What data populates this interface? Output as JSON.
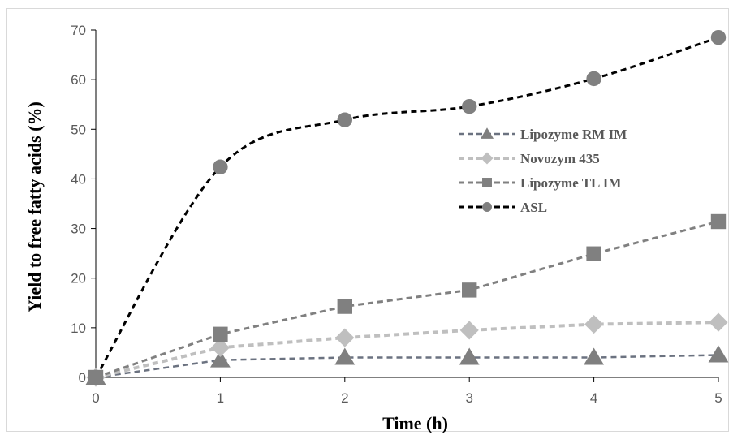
{
  "chart_data": {
    "type": "line",
    "xlabel": "Time (h)",
    "ylabel": "Yield to free fatty acids (%)",
    "xlim": [
      0,
      5
    ],
    "ylim": [
      0,
      70
    ],
    "x_ticks": [
      "0",
      "1",
      "2",
      "3",
      "4",
      "5"
    ],
    "y_ticks": [
      "0",
      "10",
      "20",
      "30",
      "40",
      "50",
      "60",
      "70"
    ],
    "grid": false,
    "legend_position": "right",
    "x": [
      0,
      1,
      2,
      3,
      4,
      5
    ],
    "series": [
      {
        "name": "Lipozyme RM IM",
        "marker": "triangle",
        "color": "#7f7f7f",
        "line_color": "#6b7280",
        "values": [
          0,
          3.5,
          4.0,
          4.0,
          4.0,
          4.5
        ]
      },
      {
        "name": "Novozym 435",
        "marker": "diamond",
        "color": "#bfbfbf",
        "line_color": "#bfbfbf",
        "values": [
          0,
          6.0,
          8.0,
          9.5,
          10.7,
          11.1
        ]
      },
      {
        "name": "Lipozyme TL IM",
        "marker": "square",
        "color": "#808080",
        "line_color": "#808080",
        "values": [
          0,
          8.7,
          14.3,
          17.6,
          24.9,
          31.4
        ]
      },
      {
        "name": "ASL",
        "marker": "circle",
        "color": "#808080",
        "line_color": "#000000",
        "values": [
          0,
          42.4,
          51.9,
          54.6,
          60.2,
          68.5
        ]
      }
    ]
  }
}
